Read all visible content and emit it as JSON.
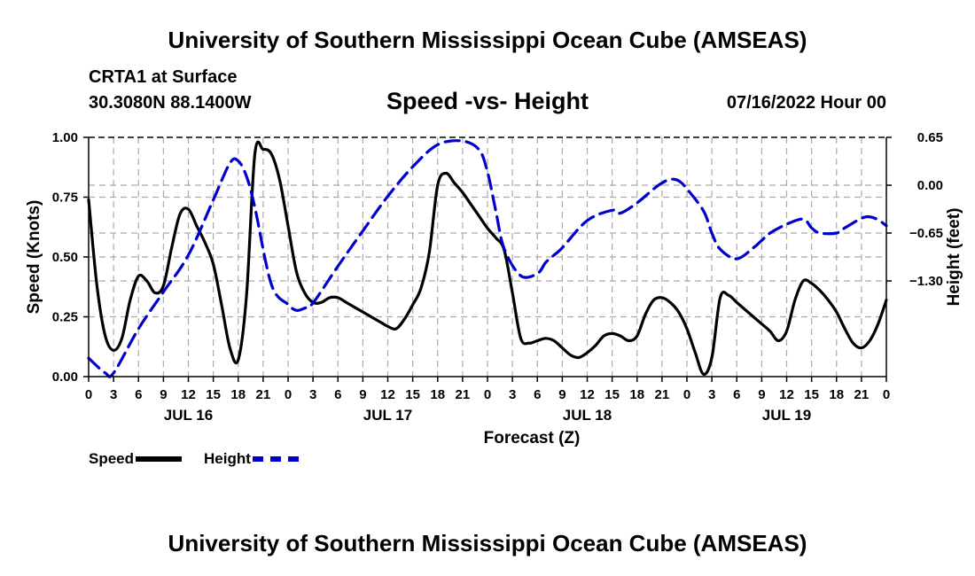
{
  "header": {
    "title": "University of Southern Mississippi Ocean Cube (AMSEAS)",
    "station": "CRTA1 at Surface",
    "coords": "30.3080N  88.1400W",
    "subtitle": "Speed -vs- Height",
    "datetime": "07/16/2022 Hour 00"
  },
  "footer": {
    "title": "University of Southern Mississippi Ocean Cube (AMSEAS)"
  },
  "legend": {
    "speed_label": "Speed",
    "height_label": "Height"
  },
  "colors": {
    "speed": "#000000",
    "height": "#0000cc",
    "grid": "#aaaaaa"
  },
  "chart_data": {
    "type": "line",
    "title": "Speed -vs- Height",
    "xlabel": "Forecast (Z)",
    "ylabel": "Speed (Knots)",
    "y2label": "Height (feet)",
    "x_hours_range": [
      0,
      96
    ],
    "x_tick_labels": [
      "0",
      "3",
      "6",
      "9",
      "12",
      "15",
      "18",
      "21",
      "0",
      "3",
      "6",
      "9",
      "12",
      "15",
      "18",
      "21",
      "0",
      "3",
      "6",
      "9",
      "12",
      "15",
      "18",
      "21",
      "0",
      "3",
      "6",
      "9",
      "12",
      "15",
      "18",
      "21",
      "0"
    ],
    "day_labels": [
      {
        "label": "JUL 16",
        "hour": 12
      },
      {
        "label": "JUL 17",
        "hour": 36
      },
      {
        "label": "JUL 18",
        "hour": 60
      },
      {
        "label": "JUL 19",
        "hour": 84
      }
    ],
    "ylim": [
      0,
      1
    ],
    "y_ticks": [
      "0.00",
      "0.25",
      "0.50",
      "0.75",
      "1.00"
    ],
    "y2lim": [
      -2.6,
      0.65
    ],
    "y2_ticks": [
      {
        "value": 0.65,
        "label": "0.65"
      },
      {
        "value": 0.0,
        "label": "0.00"
      },
      {
        "value": -0.65,
        "label": "−0.65"
      },
      {
        "value": -1.3,
        "label": "−1.30"
      }
    ],
    "series": [
      {
        "name": "Speed",
        "axis": "left",
        "style": "solid",
        "hours": [
          0,
          1,
          2,
          3,
          4,
          5,
          6,
          7,
          8,
          9,
          10,
          11,
          12,
          13,
          14,
          15,
          16,
          17,
          18,
          19,
          20,
          21,
          22,
          23,
          24,
          25,
          26,
          27,
          28,
          29,
          30,
          31,
          32,
          33,
          34,
          35,
          36,
          37,
          38,
          39,
          40,
          41,
          42,
          43,
          44,
          45,
          46,
          47,
          48,
          49,
          50,
          51,
          52,
          53,
          54,
          55,
          56,
          57,
          58,
          59,
          60,
          61,
          62,
          63,
          64,
          65,
          66,
          67,
          68,
          69,
          70,
          71,
          72,
          73,
          74,
          75,
          76,
          77,
          78,
          79,
          80,
          81,
          82,
          83,
          84,
          85,
          86,
          87,
          88,
          89,
          90,
          91,
          92,
          93,
          94,
          95,
          96
        ],
        "values": [
          0.74,
          0.38,
          0.17,
          0.11,
          0.16,
          0.32,
          0.42,
          0.4,
          0.35,
          0.38,
          0.54,
          0.68,
          0.7,
          0.63,
          0.56,
          0.47,
          0.3,
          0.12,
          0.07,
          0.34,
          0.93,
          0.95,
          0.93,
          0.82,
          0.63,
          0.44,
          0.35,
          0.31,
          0.31,
          0.33,
          0.33,
          0.31,
          0.29,
          0.27,
          0.25,
          0.23,
          0.21,
          0.2,
          0.24,
          0.3,
          0.37,
          0.52,
          0.8,
          0.85,
          0.81,
          0.77,
          0.72,
          0.67,
          0.62,
          0.58,
          0.53,
          0.35,
          0.16,
          0.14,
          0.15,
          0.16,
          0.15,
          0.12,
          0.09,
          0.08,
          0.1,
          0.13,
          0.17,
          0.18,
          0.17,
          0.15,
          0.17,
          0.26,
          0.32,
          0.33,
          0.31,
          0.27,
          0.2,
          0.1,
          0.01,
          0.08,
          0.33,
          0.34,
          0.31,
          0.28,
          0.25,
          0.22,
          0.19,
          0.15,
          0.19,
          0.32,
          0.4,
          0.39,
          0.36,
          0.32,
          0.27,
          0.2,
          0.14,
          0.12,
          0.15,
          0.22,
          0.32
        ]
      },
      {
        "name": "Height",
        "axis": "right",
        "style": "dashed",
        "hours": [
          0,
          2,
          3,
          6,
          9,
          12,
          15,
          17,
          18,
          19,
          20,
          22,
          24,
          25,
          26,
          27,
          30,
          33,
          36,
          39,
          42,
          45,
          47,
          48,
          49,
          50,
          52,
          54,
          55,
          56,
          57,
          60,
          63,
          64,
          66,
          68,
          69,
          70,
          71,
          72,
          74,
          75,
          76,
          78,
          80,
          81,
          82,
          84,
          86,
          87,
          88,
          90,
          91,
          93,
          94,
          95,
          96
        ],
        "values": [
          -2.35,
          -2.55,
          -2.55,
          -1.95,
          -1.45,
          -0.95,
          -0.2,
          0.3,
          0.33,
          0.12,
          -0.3,
          -1.35,
          -1.62,
          -1.7,
          -1.67,
          -1.6,
          -1.1,
          -0.62,
          -0.15,
          0.25,
          0.55,
          0.6,
          0.48,
          0.18,
          -0.35,
          -0.86,
          -1.23,
          -1.2,
          -1.05,
          -0.95,
          -0.85,
          -0.48,
          -0.34,
          -0.38,
          -0.24,
          -0.05,
          0.03,
          0.08,
          0.06,
          -0.05,
          -0.35,
          -0.65,
          -0.87,
          -1.0,
          -0.85,
          -0.75,
          -0.65,
          -0.53,
          -0.46,
          -0.58,
          -0.65,
          -0.65,
          -0.58,
          -0.45,
          -0.43,
          -0.47,
          -0.55
        ]
      }
    ]
  }
}
